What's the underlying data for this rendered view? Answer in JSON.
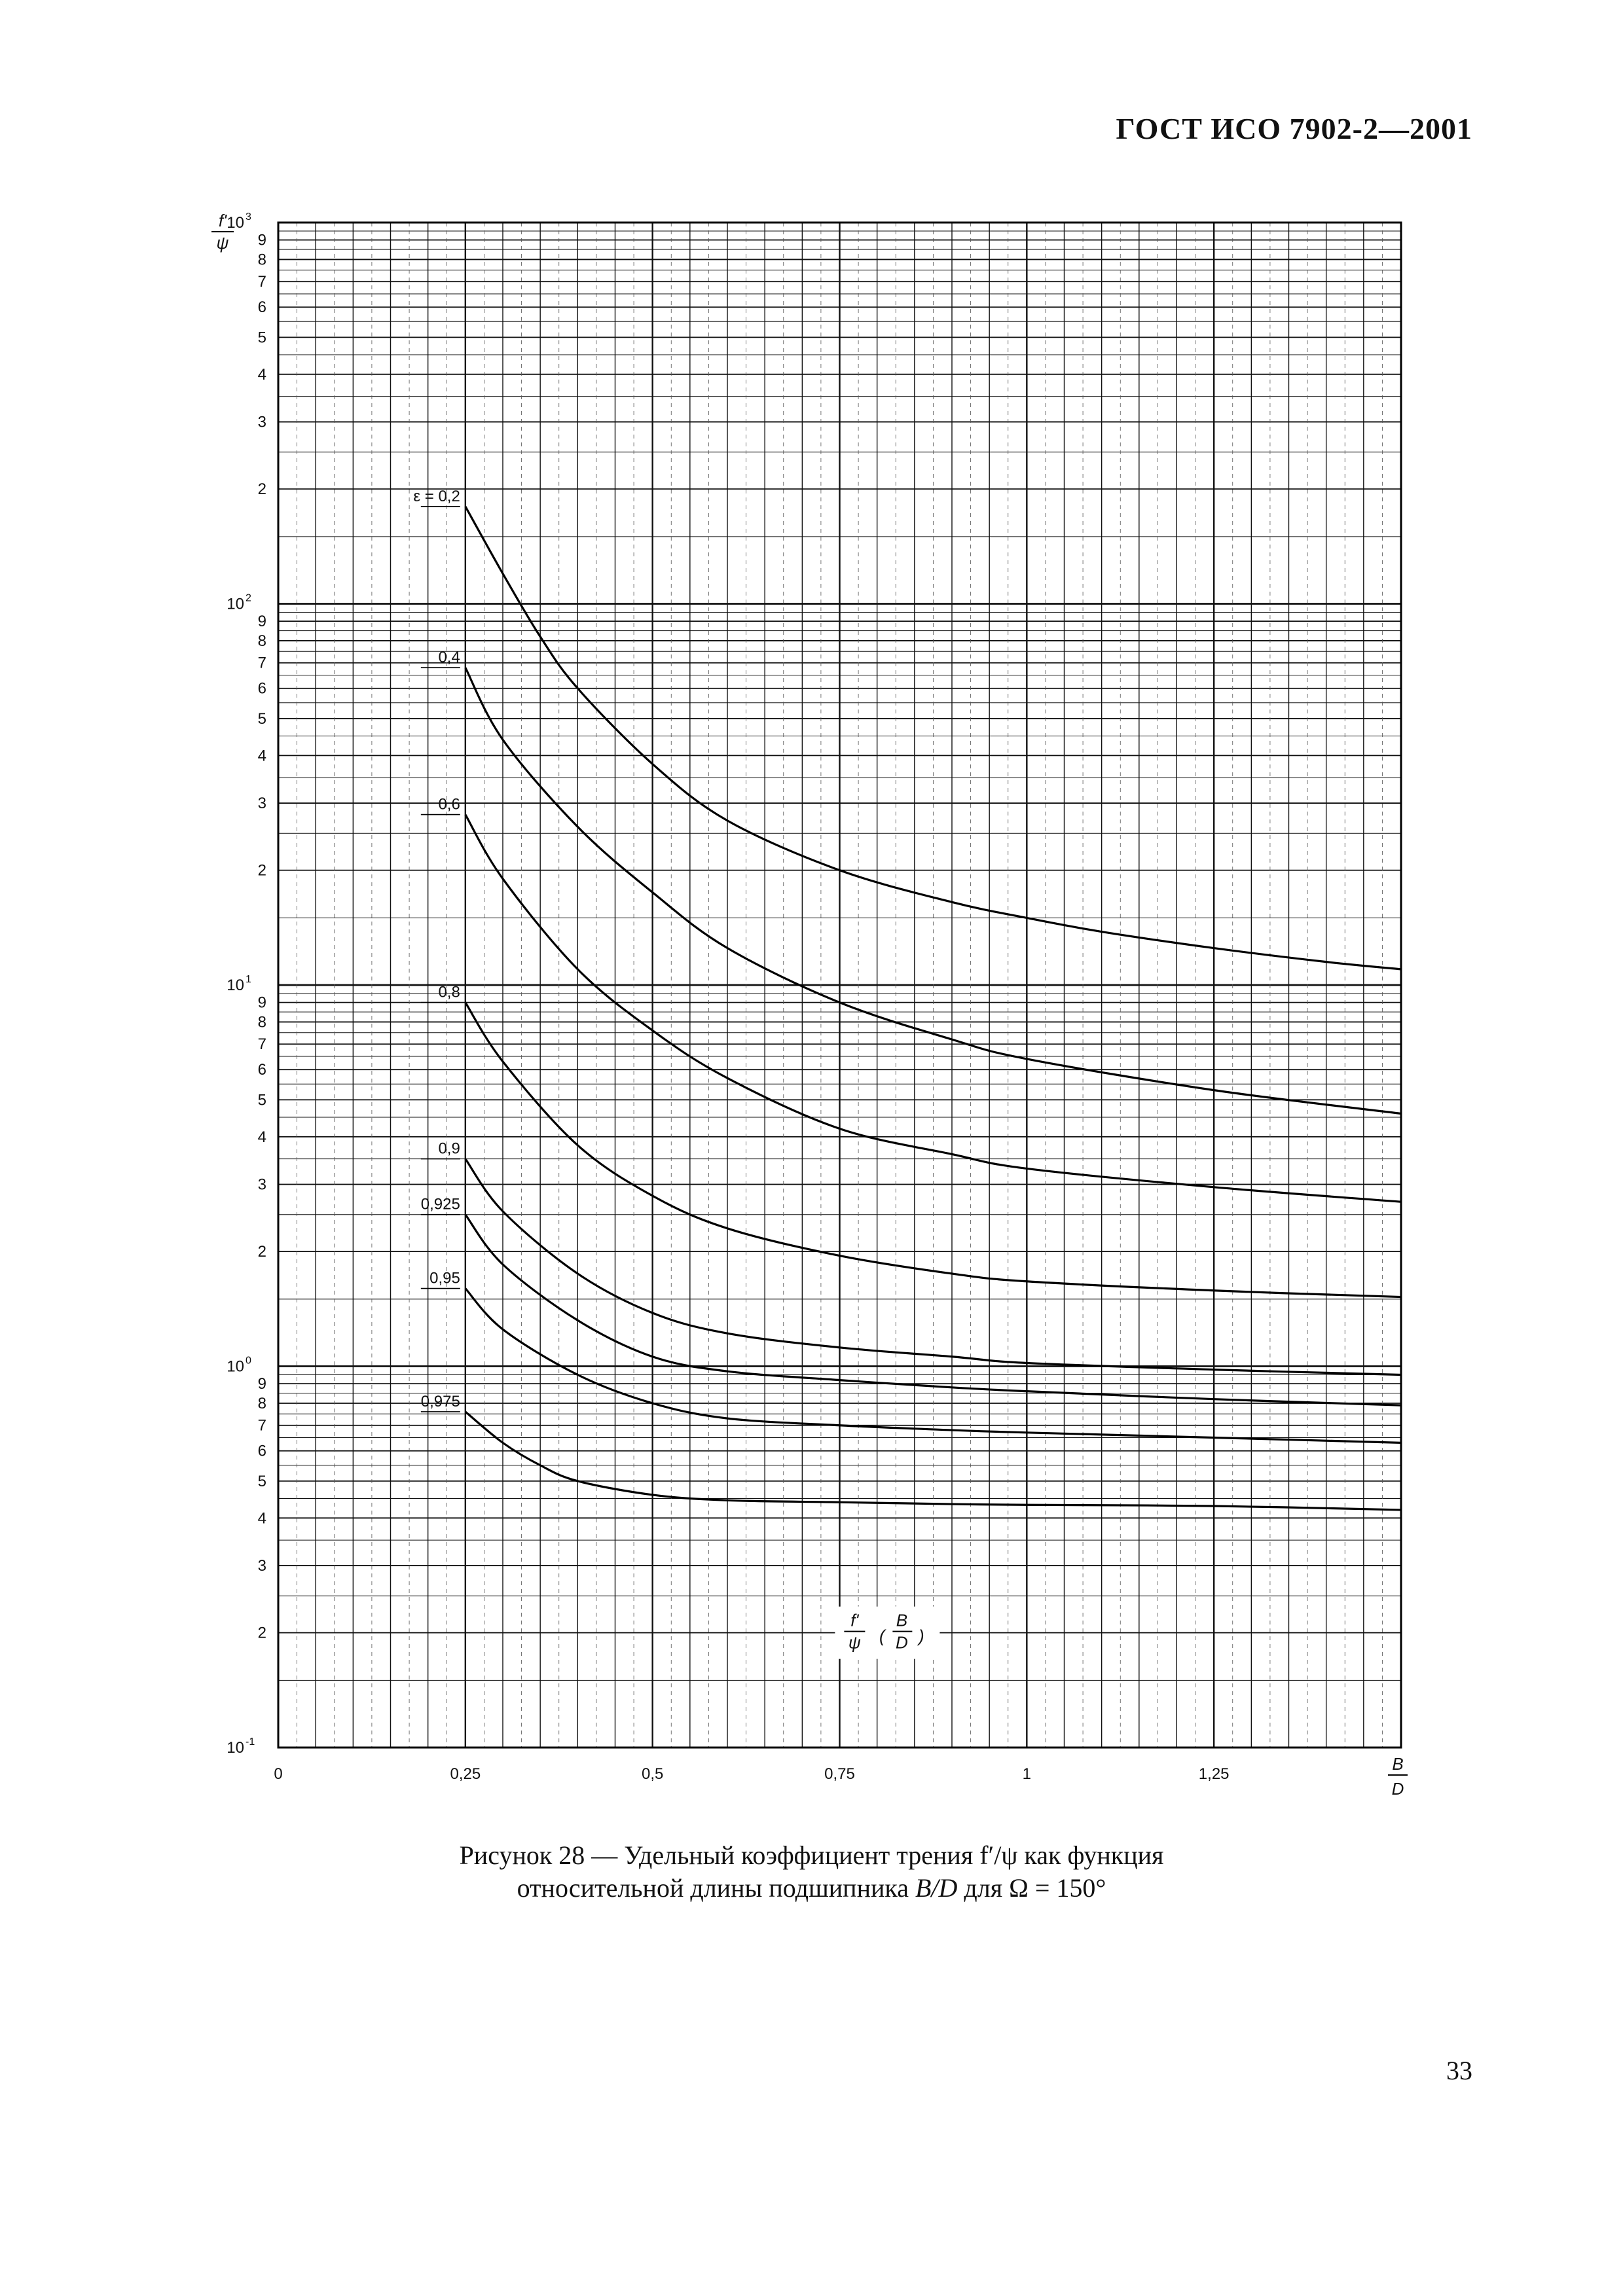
{
  "header": "ГОСТ ИСО 7902-2—2001",
  "page_number": "33",
  "caption": {
    "line1": "Рисунок 28 — Удельный коэффициент трения f′/ψ как функция",
    "line2_pre": "относительной длины подшипника ",
    "line2_it": "B/D",
    "line2_post": " для Ω = 150°"
  },
  "chart_data": {
    "type": "line",
    "y_scale": "log",
    "ylim": [
      0.1,
      1000
    ],
    "xlim": [
      0,
      1.5
    ],
    "x_tick_labels": [
      "0",
      "0,25",
      "0,5",
      "0,75",
      "1",
      "1,25"
    ],
    "x_ticks": [
      0,
      0.25,
      0.5,
      0.75,
      1,
      1.25
    ],
    "x_axis_label": {
      "num": "B",
      "den": "D"
    },
    "y_axis_label": {
      "num": "f'",
      "den": "ψ"
    },
    "y_decades": [
      {
        "value": 1000,
        "base": "10",
        "exp": "3"
      },
      {
        "value": 100,
        "base": "10",
        "exp": "2"
      },
      {
        "value": 10,
        "base": "10",
        "exp": "1"
      },
      {
        "value": 1,
        "base": "10",
        "exp": "0"
      },
      {
        "value": 0.1,
        "base": "10",
        "exp": "-1"
      }
    ],
    "y_minor_labels": [
      "2",
      "3",
      "4",
      "5",
      "6",
      "7",
      "8",
      "9"
    ],
    "inner_label": {
      "fn": "f'",
      "fd": "ψ",
      "bn": "B",
      "bd": "D"
    },
    "series": [
      {
        "name": "ε = 0,2",
        "x": [
          0.25,
          0.3,
          0.35,
          0.4,
          0.5,
          0.6,
          0.75,
          0.9,
          1.0,
          1.1,
          1.25,
          1.4,
          1.5
        ],
        "y": [
          180,
          120,
          82,
          60,
          38,
          27,
          20,
          16.5,
          15,
          13.8,
          12.5,
          11.5,
          11
        ]
      },
      {
        "name": "0,4",
        "x": [
          0.25,
          0.3,
          0.4,
          0.5,
          0.6,
          0.75,
          0.9,
          1.0,
          1.25,
          1.5
        ],
        "y": [
          68,
          44,
          26,
          17.5,
          12.5,
          9,
          7.2,
          6.4,
          5.3,
          4.6
        ]
      },
      {
        "name": "0,6",
        "x": [
          0.25,
          0.3,
          0.4,
          0.5,
          0.6,
          0.75,
          0.9,
          1.0,
          1.25,
          1.5
        ],
        "y": [
          28,
          19,
          11,
          7.6,
          5.7,
          4.2,
          3.6,
          3.3,
          2.95,
          2.7
        ]
      },
      {
        "name": "0,8",
        "x": [
          0.25,
          0.3,
          0.4,
          0.5,
          0.6,
          0.75,
          0.9,
          1.0,
          1.25,
          1.5
        ],
        "y": [
          9,
          6.3,
          3.8,
          2.8,
          2.3,
          1.95,
          1.75,
          1.67,
          1.58,
          1.52
        ]
      },
      {
        "name": "0,9",
        "x": [
          0.25,
          0.3,
          0.4,
          0.5,
          0.6,
          0.75,
          0.9,
          1.0,
          1.25,
          1.5
        ],
        "y": [
          3.5,
          2.55,
          1.75,
          1.38,
          1.22,
          1.12,
          1.06,
          1.02,
          0.98,
          0.95
        ]
      },
      {
        "name": "0,925",
        "x": [
          0.25,
          0.3,
          0.4,
          0.5,
          0.6,
          0.75,
          0.9,
          1.0,
          1.25,
          1.5
        ],
        "y": [
          2.5,
          1.85,
          1.32,
          1.06,
          0.97,
          0.92,
          0.88,
          0.86,
          0.82,
          0.79
        ]
      },
      {
        "name": "0,95",
        "x": [
          0.25,
          0.3,
          0.4,
          0.5,
          0.6,
          0.75,
          0.9,
          1.0,
          1.25,
          1.5
        ],
        "y": [
          1.6,
          1.25,
          0.95,
          0.8,
          0.73,
          0.7,
          0.68,
          0.67,
          0.65,
          0.63
        ]
      },
      {
        "name": "0,975",
        "x": [
          0.25,
          0.3,
          0.35,
          0.4,
          0.5,
          0.6,
          0.75,
          0.9,
          1.0,
          1.25,
          1.5
        ],
        "y": [
          0.76,
          0.63,
          0.55,
          0.5,
          0.46,
          0.445,
          0.44,
          0.435,
          0.433,
          0.43,
          0.42
        ]
      }
    ],
    "grid": true
  }
}
